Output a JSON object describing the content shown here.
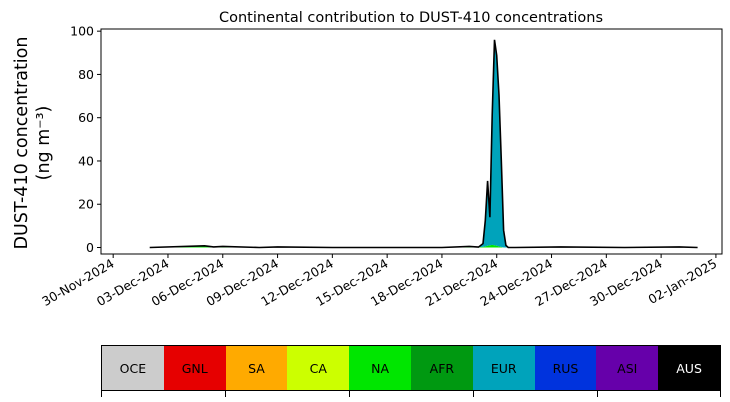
{
  "chart_data": {
    "type": "area",
    "title": "Continental contribution to DUST-410 concentrations",
    "ylabel_line1": "DUST-410 concentration",
    "ylabel_line2": "(ng m⁻³)",
    "xlabel": "",
    "ylim": [
      -3,
      101
    ],
    "xlim": [
      "2024-11-29T08:00",
      "2025-01-02T08:00"
    ],
    "yticks": [
      0,
      20,
      40,
      60,
      80,
      100
    ],
    "xticks": [
      "30-Nov-2024",
      "03-Dec-2024",
      "06-Dec-2024",
      "09-Dec-2024",
      "12-Dec-2024",
      "15-Dec-2024",
      "18-Dec-2024",
      "21-Dec-2024",
      "24-Dec-2024",
      "27-Dec-2024",
      "30-Dec-2024",
      "02-Jan-2025"
    ],
    "x": [
      "2024-12-02T00:00",
      "2024-12-05T00:00",
      "2024-12-05T12:00",
      "2024-12-06T00:00",
      "2024-12-08T00:00",
      "2024-12-09T00:00",
      "2024-12-12T00:00",
      "2024-12-18T00:00",
      "2024-12-19T12:00",
      "2024-12-20T00:00",
      "2024-12-20T06:00",
      "2024-12-20T09:00",
      "2024-12-20T12:00",
      "2024-12-20T15:00",
      "2024-12-20T18:00",
      "2024-12-20T21:00",
      "2024-12-21T00:00",
      "2024-12-21T03:00",
      "2024-12-21T06:00",
      "2024-12-21T09:00",
      "2024-12-21T12:00",
      "2024-12-21T15:00",
      "2024-12-22T00:00",
      "2024-12-24T12:00",
      "2024-12-28T00:00",
      "2024-12-31T00:00",
      "2025-01-01T00:00"
    ],
    "series": [
      {
        "name": "OCE",
        "values": [
          0,
          0,
          0,
          0,
          0,
          0,
          0,
          0,
          0,
          0,
          0,
          0,
          0,
          0,
          0,
          0,
          0,
          0,
          0,
          0,
          0,
          0,
          0,
          0,
          0,
          0,
          0
        ]
      },
      {
        "name": "GNL",
        "values": [
          0,
          0,
          0,
          0,
          0,
          0,
          0,
          0,
          0,
          0,
          0,
          0,
          0,
          0,
          0,
          0,
          0,
          0,
          0,
          0,
          0,
          0,
          0,
          0,
          0,
          0,
          0
        ]
      },
      {
        "name": "SA",
        "values": [
          0,
          0,
          0,
          0,
          0,
          0,
          0,
          0,
          0,
          0,
          0,
          0,
          0,
          0,
          0,
          0,
          0,
          0,
          0,
          0,
          0,
          0,
          0,
          0,
          0,
          0,
          0
        ]
      },
      {
        "name": "CA",
        "values": [
          0,
          0,
          0,
          0,
          0,
          0,
          0,
          0,
          0,
          0,
          0,
          0,
          0,
          0,
          0,
          0,
          0,
          0,
          0,
          0,
          0,
          0,
          0,
          0,
          0,
          0,
          0
        ]
      },
      {
        "name": "NA",
        "values": [
          0,
          0.8,
          0.3,
          0.5,
          0,
          0.3,
          0,
          0,
          0.5,
          0.2,
          0.3,
          0.5,
          0.8,
          1.0,
          1.2,
          1.0,
          0.8,
          0.5,
          0.3,
          0,
          0,
          0,
          0,
          0.3,
          0,
          0.3,
          0
        ]
      },
      {
        "name": "AFR",
        "values": [
          0,
          0,
          0,
          0,
          0,
          0,
          0,
          0,
          0,
          0,
          0,
          0,
          0,
          0,
          0,
          0,
          0,
          0,
          0,
          0,
          0,
          0,
          0,
          0,
          0,
          0,
          0
        ]
      },
      {
        "name": "EUR",
        "values": [
          0,
          0,
          0,
          0,
          0,
          0,
          0,
          0,
          0,
          0,
          1.5,
          12,
          30,
          13,
          60,
          95,
          88,
          70,
          40,
          8,
          1,
          0,
          0,
          0,
          0,
          0,
          0
        ]
      },
      {
        "name": "RUS",
        "values": [
          0,
          0,
          0,
          0,
          0,
          0,
          0,
          0,
          0,
          0,
          0,
          0,
          0,
          0,
          0,
          0,
          0,
          0,
          0,
          0,
          0,
          0,
          0,
          0,
          0,
          0,
          0
        ]
      },
      {
        "name": "ASI",
        "values": [
          0,
          0,
          0,
          0,
          0,
          0,
          0,
          0,
          0,
          0,
          0,
          0,
          0,
          0,
          0,
          0,
          0,
          0,
          0,
          0,
          0,
          0,
          0,
          0,
          0,
          0,
          0
        ]
      },
      {
        "name": "AUS",
        "values": [
          0,
          0,
          0,
          0,
          0,
          0,
          0,
          0,
          0,
          0,
          0,
          0,
          0,
          0,
          0,
          0,
          0,
          0,
          0,
          0,
          0,
          0,
          0,
          0,
          0,
          0,
          0
        ]
      }
    ],
    "total_line_color": "#000000",
    "grid": false,
    "legend_placement": "bottom"
  },
  "legend": {
    "items": [
      {
        "label": "OCE",
        "color": "#cccccc",
        "text_color": "#000000"
      },
      {
        "label": "GNL",
        "color": "#e60000",
        "text_color": "#000000"
      },
      {
        "label": "SA",
        "color": "#ffaa00",
        "text_color": "#000000"
      },
      {
        "label": "CA",
        "color": "#ccff00",
        "text_color": "#000000"
      },
      {
        "label": "NA",
        "color": "#00e600",
        "text_color": "#000000"
      },
      {
        "label": "AFR",
        "color": "#009911",
        "text_color": "#000000"
      },
      {
        "label": "EUR",
        "color": "#00a3bb",
        "text_color": "#000000"
      },
      {
        "label": "RUS",
        "color": "#0033dd",
        "text_color": "#000000"
      },
      {
        "label": "ASI",
        "color": "#6600aa",
        "text_color": "#000000"
      },
      {
        "label": "AUS",
        "color": "#000000",
        "text_color": "#ffffff"
      }
    ]
  }
}
